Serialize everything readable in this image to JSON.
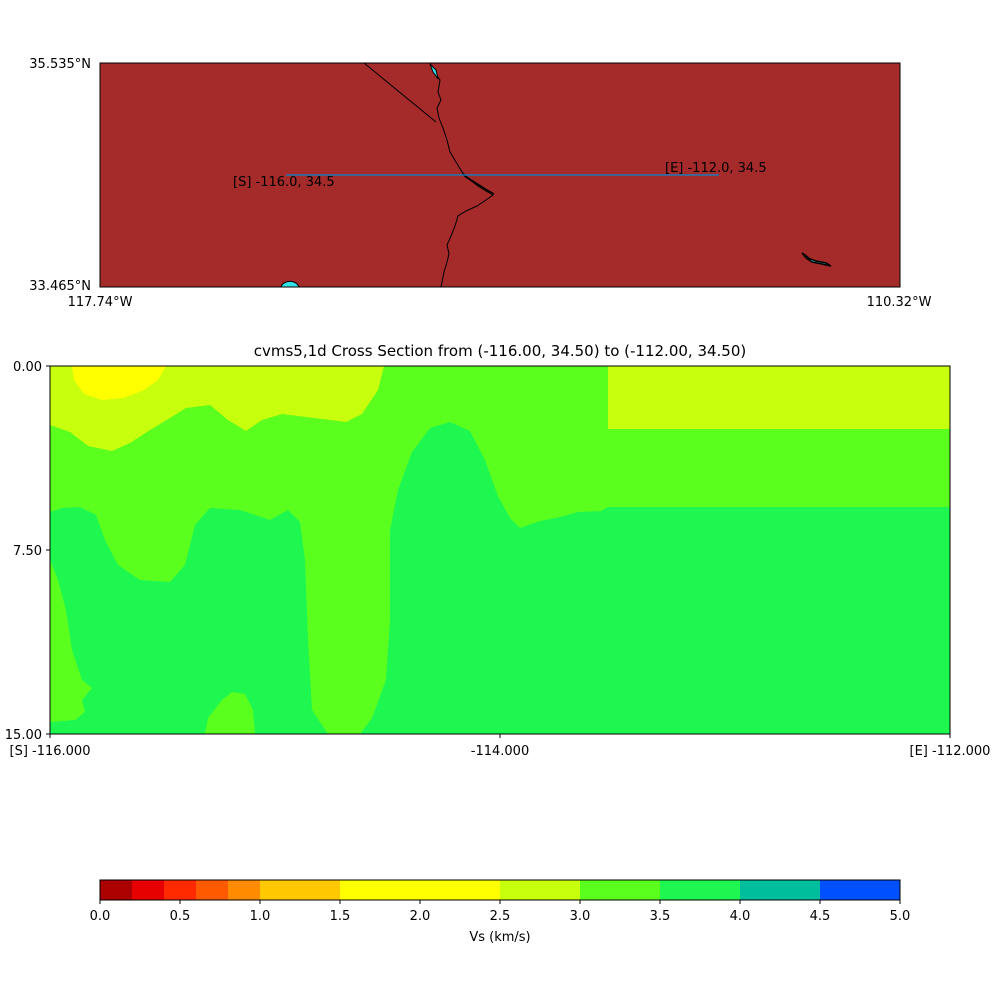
{
  "colors": {
    "land": "#a52a2a",
    "water": "#33e1e6",
    "profile_line": "#1f77b4",
    "border": "#000000",
    "yellow": "#ffff00",
    "yellow_green": "#c8ff0c",
    "light_green": "#5aff1e",
    "green": "#1ef750"
  },
  "map": {
    "lat_top_label": "35.535°N",
    "lat_bottom_label": "33.465°N",
    "lon_left_label": "117.74°W",
    "lon_right_label": "110.32°W",
    "start_label": "[S] -116.0, 34.5",
    "end_label": "[E] -112.0, 34.5"
  },
  "chart_data": {
    "type": "heatmap",
    "title": "cvms5,1d Cross Section from (-116.00, 34.50) to (-112.00, 34.50)",
    "xlabel": "",
    "ylabel": "",
    "xlim": [
      -116.0,
      -112.0
    ],
    "ylim": [
      15.0,
      0.0
    ],
    "x_tick_labels": [
      "[S] -116.000",
      "-114.000",
      "[E] -112.000"
    ],
    "y_tick_labels": [
      "0.00",
      "7.50",
      "15.00"
    ],
    "regions_vs_kms": [
      {
        "band": "2.0-2.5",
        "description": "near-surface pocket at west end"
      },
      {
        "band": "2.5-3.0",
        "description": "shallow layer west, and 0-2.5 depth east of -113.5"
      },
      {
        "band": "3.0-3.5",
        "description": "intermediate layer"
      },
      {
        "band": "3.5-4.0",
        "description": "deep layer"
      }
    ],
    "colorbar": {
      "label": "Vs (km/s)",
      "tick_labels": [
        "0.0",
        "0.5",
        "1.0",
        "1.5",
        "2.0",
        "2.5",
        "3.0",
        "3.5",
        "4.0",
        "4.5",
        "5.0"
      ],
      "bins": [
        {
          "from": 0.0,
          "to": 0.2,
          "color": "#aa0000"
        },
        {
          "from": 0.2,
          "to": 0.4,
          "color": "#e60000"
        },
        {
          "from": 0.4,
          "to": 0.6,
          "color": "#ff2a00"
        },
        {
          "from": 0.6,
          "to": 0.8,
          "color": "#ff5a00"
        },
        {
          "from": 0.8,
          "to": 1.0,
          "color": "#ff8c00"
        },
        {
          "from": 1.0,
          "to": 1.5,
          "color": "#ffc800"
        },
        {
          "from": 1.5,
          "to": 2.5,
          "color": "#ffff00"
        },
        {
          "from": 2.5,
          "to": 3.0,
          "color": "#c8ff0c"
        },
        {
          "from": 3.0,
          "to": 3.5,
          "color": "#5aff1e"
        },
        {
          "from": 3.5,
          "to": 4.0,
          "color": "#1ef750"
        },
        {
          "from": 4.0,
          "to": 4.5,
          "color": "#00bd9b"
        },
        {
          "from": 4.5,
          "to": 5.0,
          "color": "#0050ff"
        }
      ]
    }
  }
}
